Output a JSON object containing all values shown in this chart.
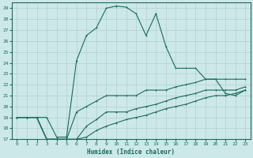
{
  "xlabel": "Humidex (Indice chaleur)",
  "bg_color": "#cde8e8",
  "line_color": "#1a6b5a",
  "grid_color": "#b0d0d0",
  "xlim": [
    -0.5,
    23.5
  ],
  "ylim": [
    17,
    29.5
  ],
  "yticks": [
    17,
    18,
    19,
    20,
    21,
    22,
    23,
    24,
    25,
    26,
    27,
    28,
    29
  ],
  "xticks": [
    0,
    1,
    2,
    3,
    4,
    5,
    6,
    7,
    8,
    9,
    10,
    11,
    12,
    13,
    14,
    15,
    16,
    17,
    18,
    19,
    20,
    21,
    22,
    23
  ],
  "curve1_x": [
    0,
    1,
    2,
    3,
    4,
    5,
    6,
    7,
    8,
    9,
    10,
    11,
    12,
    13,
    14,
    15,
    16,
    17,
    18,
    19,
    20,
    21,
    22,
    23
  ],
  "curve1_y": [
    19,
    19,
    19,
    19,
    17.2,
    17.2,
    24.2,
    26.5,
    27.2,
    29,
    29.2,
    29.1,
    28.5,
    26.5,
    28.5,
    25.5,
    23.5,
    23.5,
    23.5,
    22.5,
    22.5,
    21.2,
    21.0,
    21.5
  ],
  "curve2_x": [
    0,
    1,
    2,
    3,
    4,
    5,
    6,
    7,
    8,
    9,
    10,
    11,
    12,
    13,
    14,
    15,
    16,
    17,
    18,
    19,
    20,
    21,
    22,
    23
  ],
  "curve2_y": [
    19,
    19,
    19,
    17,
    17,
    17,
    19.5,
    20.0,
    20.5,
    21,
    21,
    21,
    21,
    21.5,
    21.5,
    21.5,
    21.8,
    22,
    22.2,
    22.5,
    22.5,
    22.5,
    22.5,
    22.5
  ],
  "curve3_x": [
    0,
    1,
    2,
    3,
    4,
    5,
    6,
    7,
    8,
    9,
    10,
    11,
    12,
    13,
    14,
    15,
    16,
    17,
    18,
    19,
    20,
    21,
    22,
    23
  ],
  "curve3_y": [
    19,
    19,
    19,
    17,
    17,
    17,
    17,
    18.2,
    18.8,
    19.5,
    19.5,
    19.5,
    19.8,
    20,
    20.2,
    20.5,
    20.8,
    21.0,
    21.2,
    21.5,
    21.5,
    21.5,
    21.5,
    21.8
  ],
  "curve4_x": [
    0,
    1,
    2,
    3,
    4,
    5,
    6,
    7,
    8,
    9,
    10,
    11,
    12,
    13,
    14,
    15,
    16,
    17,
    18,
    19,
    20,
    21,
    22,
    23
  ],
  "curve4_y": [
    19,
    19,
    19,
    17,
    17,
    17,
    17,
    17.2,
    17.8,
    18.2,
    18.5,
    18.8,
    19,
    19.2,
    19.5,
    19.8,
    20,
    20.2,
    20.5,
    20.8,
    21,
    21,
    21.2,
    21.5
  ]
}
